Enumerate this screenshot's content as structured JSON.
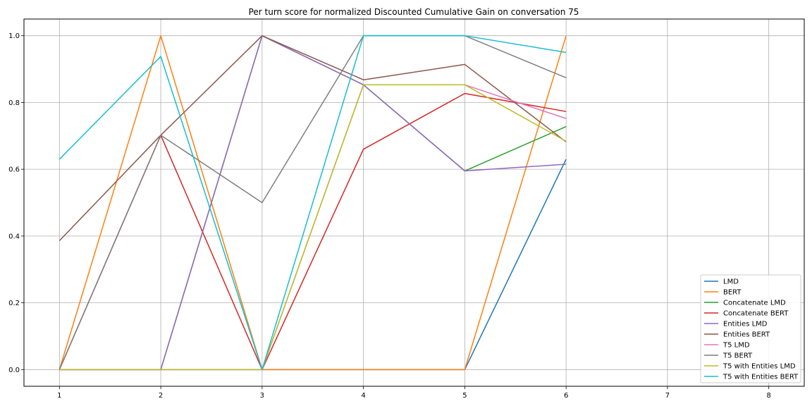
{
  "chart_data": {
    "type": "line",
    "title": "Per turn score for normalized Discounted Cumulative Gain on conversation 75",
    "xlabel": "",
    "ylabel": "",
    "xlim": [
      0.65,
      8.35
    ],
    "ylim": [
      -0.05,
      1.05
    ],
    "xticks": [
      1,
      2,
      3,
      4,
      5,
      6,
      7,
      8
    ],
    "yticks": [
      0.0,
      0.2,
      0.4,
      0.6,
      0.8,
      1.0
    ],
    "xtick_labels": [
      "1",
      "2",
      "3",
      "4",
      "5",
      "6",
      "7",
      "8"
    ],
    "ytick_labels": [
      "0.0",
      "0.2",
      "0.4",
      "0.6",
      "0.8",
      "1.0"
    ],
    "grid": true,
    "legend_position": "bottom-right",
    "x": [
      1,
      2,
      3,
      4,
      5,
      6
    ],
    "series": [
      {
        "name": "LMD",
        "color": "#1f77b4",
        "values": [
          0,
          0,
          0,
          0,
          0,
          0.63
        ]
      },
      {
        "name": "BERT",
        "color": "#ff7f0e",
        "values": [
          0,
          1.0,
          0,
          0,
          0,
          1.0
        ]
      },
      {
        "name": "Concatenate LMD",
        "color": "#2ca02c",
        "values": [
          0,
          0,
          1.0,
          0.853,
          0.595,
          0.728
        ]
      },
      {
        "name": "Concatenate BERT",
        "color": "#d62728",
        "values": [
          0,
          0.702,
          0,
          0.66,
          0.827,
          0.773
        ]
      },
      {
        "name": "Entities LMD",
        "color": "#9467bd",
        "values": [
          0,
          0,
          1.0,
          0.853,
          0.595,
          0.615
        ]
      },
      {
        "name": "Entities BERT",
        "color": "#8c564b",
        "values": [
          0.386,
          0.702,
          1.0,
          0.868,
          0.914,
          0.682
        ]
      },
      {
        "name": "T5 LMD",
        "color": "#e377c2",
        "values": [
          0,
          0,
          0,
          0.853,
          0.853,
          0.752
        ]
      },
      {
        "name": "T5 BERT",
        "color": "#7f7f7f",
        "values": [
          0,
          0.702,
          0.5,
          1.0,
          1.0,
          0.874
        ]
      },
      {
        "name": "T5 with Entities LMD",
        "color": "#bcbd22",
        "values": [
          0,
          0,
          0,
          0.853,
          0.853,
          0.684
        ]
      },
      {
        "name": "T5 with Entities BERT",
        "color": "#17becf",
        "values": [
          0.63,
          0.938,
          0,
          1.0,
          1.0,
          0.95
        ]
      }
    ]
  }
}
